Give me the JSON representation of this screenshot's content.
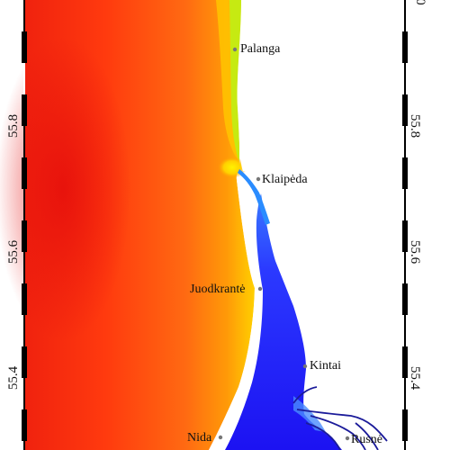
{
  "map": {
    "latitude_ticks": [
      "55.8",
      "55.6",
      "55.4"
    ],
    "top_partial_tick": ".0",
    "places": [
      {
        "id": "palanga",
        "name": "Palanga"
      },
      {
        "id": "klaipeda",
        "name": "Klaipėda"
      },
      {
        "id": "juodkrante",
        "name": "Juodkrantė"
      },
      {
        "id": "kintai",
        "name": "Kintai"
      },
      {
        "id": "nida",
        "name": "Nida"
      },
      {
        "id": "rusne",
        "name": "Rusnė"
      }
    ],
    "colors": {
      "sea_deep": "#e8150c",
      "sea_mid": "#ff5a10",
      "sea_coast": "#ffb200",
      "sea_shore": "#c8ea10",
      "lagoon_inner": "#1a18ff",
      "lagoon_outer": "#3a6bff",
      "river": "#1b1b9a",
      "land": "#ffffff"
    }
  }
}
